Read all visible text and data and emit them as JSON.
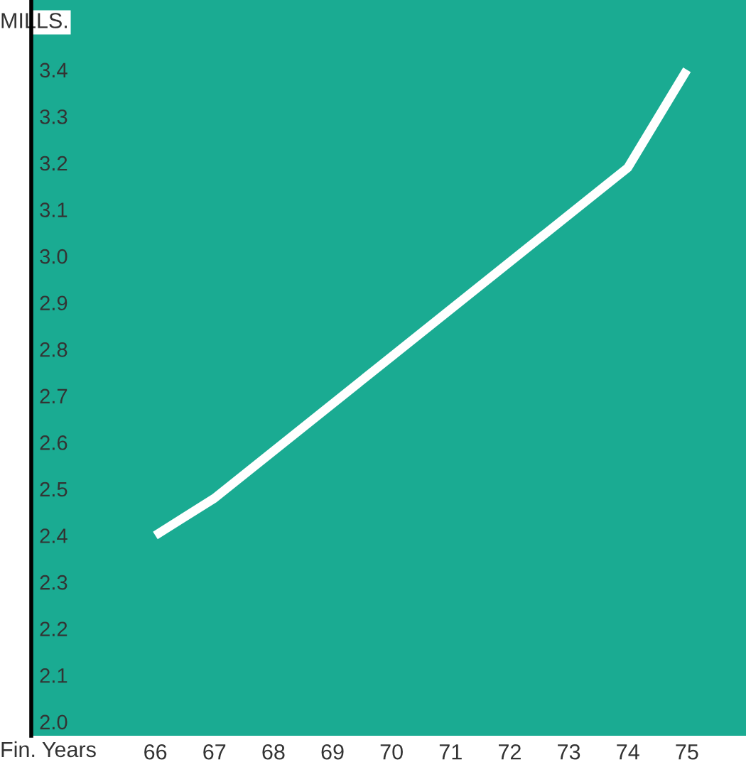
{
  "chart_data": {
    "type": "line",
    "xlabel": "Fin. Years",
    "ylabel": "MILLS.",
    "series": [
      {
        "color": "#ffffff",
        "x": [
          66,
          67,
          74,
          75
        ],
        "values": [
          2.4,
          2.48,
          3.19,
          3.4
        ]
      }
    ],
    "xlim": [
      63.9,
      76.0
    ],
    "xticks": [
      66,
      67,
      68,
      69,
      70,
      71,
      72,
      73,
      74,
      75
    ],
    "ylim": [
      1.97,
      3.55
    ],
    "yticks": [
      {
        "value": 2.0,
        "label": "2.0"
      },
      2.1,
      2.2,
      2.3,
      2.4,
      2.5,
      2.6,
      2.7,
      2.8,
      2.9,
      {
        "value": 3.0,
        "label": "3.0"
      },
      3.1,
      3.2,
      3.3,
      3.4
    ],
    "grid": false,
    "legend": false,
    "marker": "none",
    "line_style": "solid"
  }
}
